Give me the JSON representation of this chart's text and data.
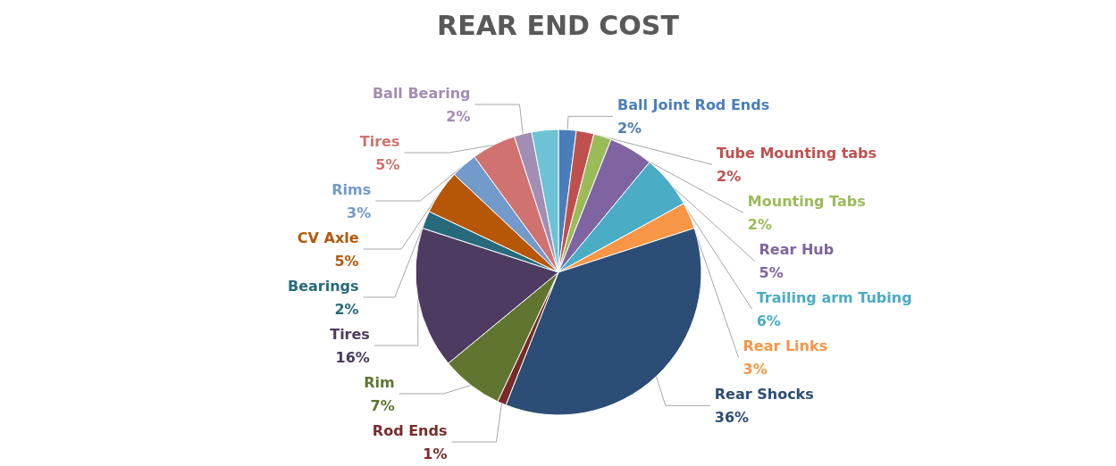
{
  "chart_data": {
    "type": "pie",
    "title": "REAR END COST",
    "categories": [
      "Ball Joint Rod Ends",
      "Tube Mounting tabs",
      "Mounting Tabs",
      "Rear Hub",
      "Trailing arm Tubing",
      "Rear Links",
      "Rear Shocks",
      "Rod Ends",
      "Rim",
      "Tires",
      "Bearings",
      "CV Axle",
      "Rims",
      "Tires",
      "Ball Bearing",
      null
    ],
    "values": [
      2,
      2,
      2,
      5,
      6,
      3,
      36,
      1,
      7,
      16,
      2,
      5,
      3,
      5,
      2,
      3
    ],
    "value_labels": [
      "2%",
      "2%",
      "2%",
      "5%",
      "6%",
      "3%",
      "36%",
      "1%",
      "7%",
      "16%",
      "2%",
      "5%",
      "3%",
      "5%",
      "2%",
      null
    ],
    "colors": [
      "#4a7ebb",
      "#c0504d",
      "#9bbb59",
      "#8064a2",
      "#4bacc6",
      "#f79646",
      "#2c4d75",
      "#772c2a",
      "#5f7530",
      "#4d3b62",
      "#276a7c",
      "#b65708",
      "#729aca",
      "#d07370",
      "#a28db5",
      "#6cc3d6"
    ],
    "legend": false
  }
}
